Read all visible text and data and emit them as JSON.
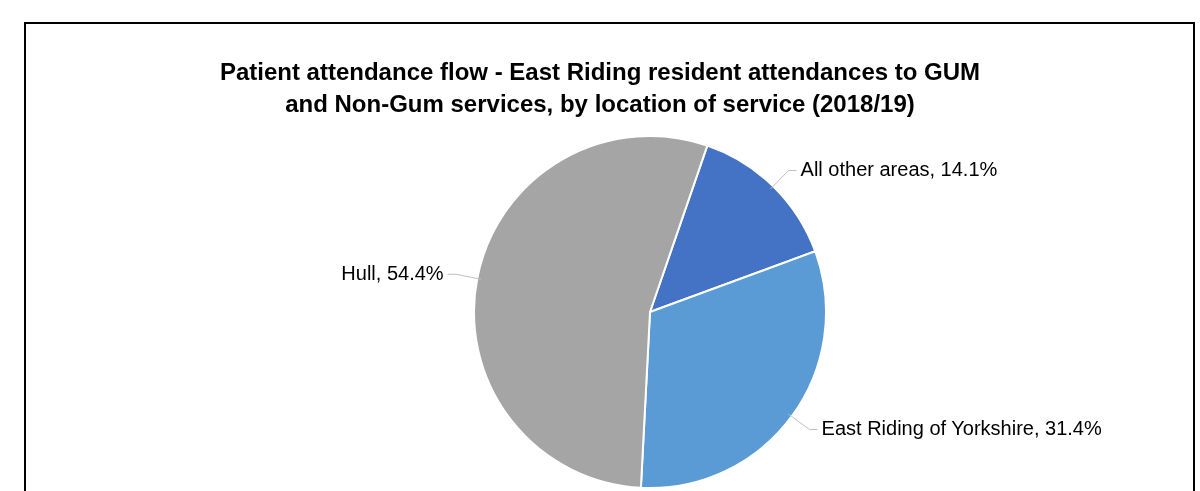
{
  "chart_data": {
    "type": "pie",
    "title": "Patient attendance flow - East Riding resident attendances to GUM and Non-Gum services, by location of service (2018/19)",
    "categories": [
      "All other areas",
      "East Riding of Yorkshire",
      "Hull"
    ],
    "values": [
      14.1,
      31.4,
      54.4
    ],
    "colors": [
      "#4472c4",
      "#5b9bd5",
      "#a5a5a5"
    ],
    "value_labels": [
      "14.1%",
      "31.4%",
      "54.4%"
    ],
    "legend": false
  }
}
